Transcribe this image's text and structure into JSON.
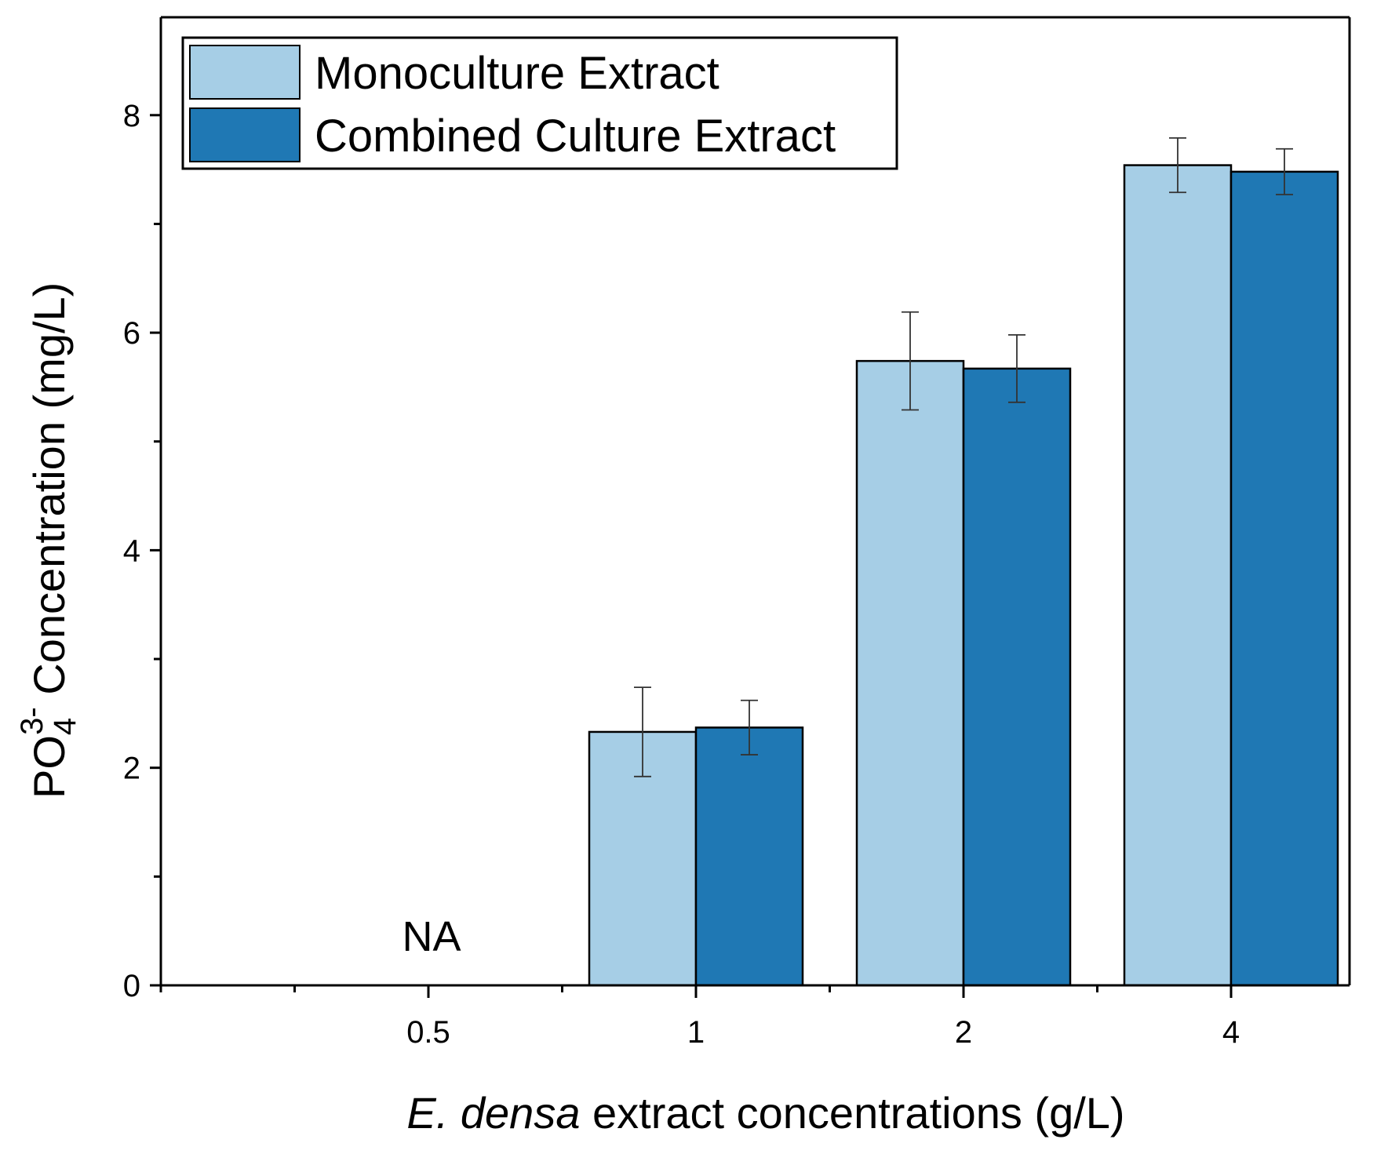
{
  "chart_data": {
    "type": "bar",
    "categories": [
      "0.5",
      "1",
      "2",
      "4"
    ],
    "series": [
      {
        "name": "Monoculture Extract",
        "color": "#a6cee6",
        "values": [
          null,
          2.33,
          5.74,
          7.54
        ],
        "errors": [
          null,
          0.41,
          0.45,
          0.25
        ]
      },
      {
        "name": "Combined Culture Extract",
        "color": "#1f78b4",
        "values": [
          null,
          2.37,
          5.67,
          7.48
        ],
        "errors": [
          null,
          0.25,
          0.31,
          0.21
        ]
      }
    ],
    "xlabel_italic": "E. densa",
    "xlabel_rest": " extract concentrations (g/L)",
    "ylabel_main": "PO",
    "ylabel_sub": "4",
    "ylabel_sup": "3-",
    "ylabel_rest": " Concentration (mg/L)",
    "ylim": [
      0,
      8.9
    ],
    "yticks": [
      0,
      2,
      4,
      6,
      8
    ],
    "annotations": [
      {
        "category": "0.5",
        "text": "NA"
      }
    ],
    "legend_position": "top-left",
    "grid": false
  }
}
